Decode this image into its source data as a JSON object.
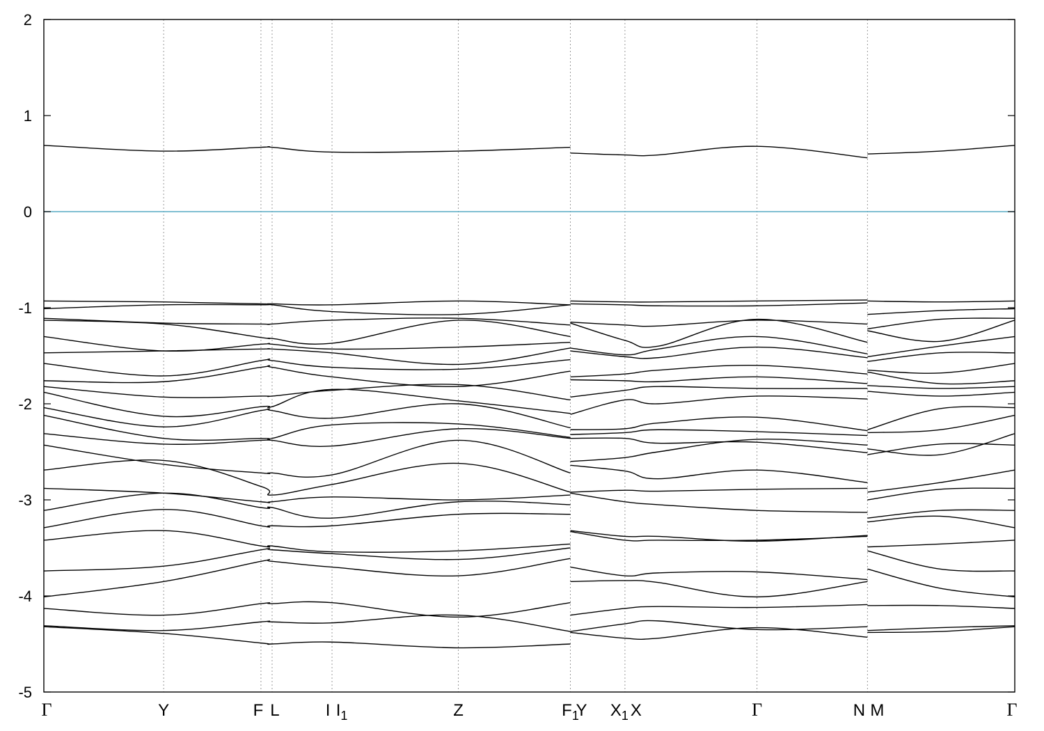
{
  "chart_data": {
    "type": "line",
    "title": "",
    "xlabel": "",
    "ylabel": "",
    "ylim": [
      -5,
      2
    ],
    "y_ticks": [
      "2",
      "1",
      "0",
      "-1",
      "-2",
      "-3",
      "-4",
      "-5"
    ],
    "fermi_level": 0,
    "fermi_color": "#55a9c4",
    "grid": "vertical dotted lines at high-symmetry points",
    "kpath_labels": [
      {
        "label": "Γ",
        "greek": true
      },
      {
        "label": "Y"
      },
      {
        "label": "F"
      },
      {
        "label": "L"
      },
      {
        "label": "I"
      },
      {
        "label": "I",
        "sub": "1"
      },
      {
        "label": "Z"
      },
      {
        "label": "F",
        "sub": "1"
      },
      {
        "label": "Y"
      },
      {
        "label": "X",
        "sub": "1"
      },
      {
        "label": "X"
      },
      {
        "label": "Γ",
        "greek": true
      },
      {
        "label": "N"
      },
      {
        "label": "M"
      },
      {
        "label": "Γ",
        "greek": true
      }
    ],
    "kpath_positions": [
      0,
      0.1234,
      0.2236,
      0.2351,
      0.2968,
      0.2968,
      0.4269,
      0.5423,
      0.5423,
      0.5985,
      0.5985,
      0.7345,
      0.8483,
      0.8483,
      1.0
    ],
    "segments": [
      {
        "from": "Γ",
        "to": "F1",
        "x": [
          0,
          0.1234,
          0.2236,
          0.2351,
          0.2968,
          0.4269,
          0.5423
        ],
        "bands": [
          [
            0.69,
            0.63,
            0.67,
            0.67,
            0.62,
            0.63,
            0.67
          ],
          [
            -0.93,
            -0.94,
            -0.96,
            -0.96,
            -0.97,
            -0.93,
            -0.97
          ],
          [
            -1.01,
            -0.97,
            -0.97,
            -0.97,
            -1.04,
            -1.07,
            -0.97
          ],
          [
            -1.11,
            -1.16,
            -1.17,
            -1.17,
            -1.13,
            -1.11,
            -1.18
          ],
          [
            -1.13,
            -1.17,
            -1.31,
            -1.32,
            -1.37,
            -1.13,
            -1.3
          ],
          [
            -1.3,
            -1.45,
            -1.38,
            -1.38,
            -1.43,
            -1.41,
            -1.36
          ],
          [
            -1.47,
            -1.45,
            -1.43,
            -1.43,
            -1.47,
            -1.59,
            -1.42
          ],
          [
            -1.58,
            -1.71,
            -1.55,
            -1.55,
            -1.62,
            -1.64,
            -1.54
          ],
          [
            -1.76,
            -1.77,
            -1.62,
            -1.62,
            -1.72,
            -1.82,
            -1.66
          ],
          [
            -1.82,
            -1.93,
            -1.92,
            -1.92,
            -1.86,
            -1.8,
            -1.96
          ],
          [
            -1.88,
            -2.13,
            -2.03,
            -2.03,
            -1.85,
            -1.97,
            -2.1
          ],
          [
            -2.04,
            -2.24,
            -2.07,
            -2.07,
            -2.15,
            -2.0,
            -2.25
          ],
          [
            -2.12,
            -2.36,
            -2.36,
            -2.36,
            -2.22,
            -2.21,
            -2.35
          ],
          [
            -2.31,
            -2.42,
            -2.38,
            -2.38,
            -2.44,
            -2.26,
            -2.36
          ],
          [
            -2.43,
            -2.63,
            -2.72,
            -2.72,
            -2.74,
            -2.38,
            -2.72
          ],
          [
            -2.69,
            -2.59,
            -2.86,
            -2.95,
            -2.84,
            -2.62,
            -2.92
          ],
          [
            -2.88,
            -2.93,
            -3.02,
            -3.02,
            -2.97,
            -3.0,
            -2.95
          ],
          [
            -3.11,
            -2.93,
            -3.08,
            -3.08,
            -3.19,
            -3.02,
            -3.05
          ],
          [
            -3.29,
            -3.1,
            -3.27,
            -3.27,
            -3.27,
            -3.15,
            -3.15
          ],
          [
            -3.42,
            -3.32,
            -3.48,
            -3.48,
            -3.54,
            -3.53,
            -3.46
          ],
          [
            -3.74,
            -3.69,
            -3.52,
            -3.52,
            -3.56,
            -3.62,
            -3.5
          ],
          [
            -4.01,
            -3.85,
            -3.64,
            -3.64,
            -3.7,
            -3.79,
            -3.61
          ],
          [
            -4.13,
            -4.2,
            -4.08,
            -4.08,
            -4.07,
            -4.22,
            -4.07
          ],
          [
            -4.31,
            -4.36,
            -4.27,
            -4.27,
            -4.28,
            -4.2,
            -4.37
          ],
          [
            -4.32,
            -4.39,
            -4.49,
            -4.5,
            -4.48,
            -4.54,
            -4.5
          ]
        ]
      },
      {
        "from": "Y",
        "to": "N",
        "x": [
          0.5423,
          0.5985,
          0.6329,
          0.7345,
          0.8483
        ],
        "bands": [
          [
            0.61,
            0.59,
            0.59,
            0.68,
            0.56
          ],
          [
            -0.93,
            -0.94,
            -0.94,
            -0.93,
            -0.92
          ],
          [
            -0.96,
            -0.97,
            -0.98,
            -0.98,
            -0.95
          ],
          [
            -1.15,
            -1.18,
            -1.19,
            -1.13,
            -1.17
          ],
          [
            -1.16,
            -1.34,
            -1.4,
            -1.12,
            -1.36
          ],
          [
            -1.42,
            -1.49,
            -1.43,
            -1.3,
            -1.48
          ],
          [
            -1.45,
            -1.51,
            -1.52,
            -1.41,
            -1.52
          ],
          [
            -1.72,
            -1.69,
            -1.65,
            -1.6,
            -1.69
          ],
          [
            -1.75,
            -1.76,
            -1.77,
            -1.72,
            -1.79
          ],
          [
            -1.93,
            -1.86,
            -1.82,
            -1.84,
            -1.84
          ],
          [
            -2.11,
            -1.96,
            -2.0,
            -1.92,
            -1.95
          ],
          [
            -2.27,
            -2.26,
            -2.2,
            -2.14,
            -2.28
          ],
          [
            -2.32,
            -2.3,
            -2.27,
            -2.29,
            -2.33
          ],
          [
            -2.36,
            -2.36,
            -2.41,
            -2.4,
            -2.51
          ],
          [
            -2.6,
            -2.56,
            -2.5,
            -2.37,
            -2.43
          ],
          [
            -2.64,
            -2.7,
            -2.78,
            -2.69,
            -2.82
          ],
          [
            -2.92,
            -2.9,
            -2.91,
            -2.89,
            -2.88
          ],
          [
            -2.93,
            -3.02,
            -3.05,
            -3.11,
            -3.13
          ],
          [
            -3.32,
            -3.38,
            -3.38,
            -3.43,
            -3.37
          ],
          [
            -3.33,
            -3.42,
            -3.42,
            -3.42,
            -3.38
          ],
          [
            -3.7,
            -3.79,
            -3.76,
            -3.75,
            -3.83
          ],
          [
            -3.85,
            -3.84,
            -3.86,
            -4.01,
            -3.85
          ],
          [
            -4.2,
            -4.13,
            -4.11,
            -4.12,
            -4.09
          ],
          [
            -4.37,
            -4.29,
            -4.26,
            -4.35,
            -4.32
          ],
          [
            -4.38,
            -4.44,
            -4.44,
            -4.33,
            -4.43
          ]
        ]
      },
      {
        "from": "M",
        "to": "Γ",
        "x": [
          0.8483,
          0.923,
          1.0
        ],
        "bands": [
          [
            0.6,
            0.63,
            0.69
          ],
          [
            -0.93,
            -0.94,
            -0.93
          ],
          [
            -1.07,
            -1.03,
            -1.01
          ],
          [
            -1.22,
            -1.12,
            -1.11
          ],
          [
            -1.24,
            -1.35,
            -1.13
          ],
          [
            -1.51,
            -1.4,
            -1.3
          ],
          [
            -1.56,
            -1.47,
            -1.47
          ],
          [
            -1.65,
            -1.68,
            -1.58
          ],
          [
            -1.67,
            -1.79,
            -1.76
          ],
          [
            -1.81,
            -1.84,
            -1.82
          ],
          [
            -1.87,
            -1.92,
            -1.88
          ],
          [
            -2.27,
            -2.05,
            -2.04
          ],
          [
            -2.3,
            -2.27,
            -2.12
          ],
          [
            -2.47,
            -2.53,
            -2.31
          ],
          [
            -2.53,
            -2.42,
            -2.43
          ],
          [
            -2.92,
            -2.82,
            -2.69
          ],
          [
            -3.0,
            -2.89,
            -2.88
          ],
          [
            -3.19,
            -3.11,
            -3.11
          ],
          [
            -3.23,
            -3.17,
            -3.29
          ],
          [
            -3.49,
            -3.46,
            -3.42
          ],
          [
            -3.53,
            -3.72,
            -3.74
          ],
          [
            -3.72,
            -3.92,
            -4.01
          ],
          [
            -4.1,
            -4.1,
            -4.13
          ],
          [
            -4.36,
            -4.33,
            -4.31
          ],
          [
            -4.38,
            -4.37,
            -4.32
          ]
        ]
      }
    ]
  }
}
